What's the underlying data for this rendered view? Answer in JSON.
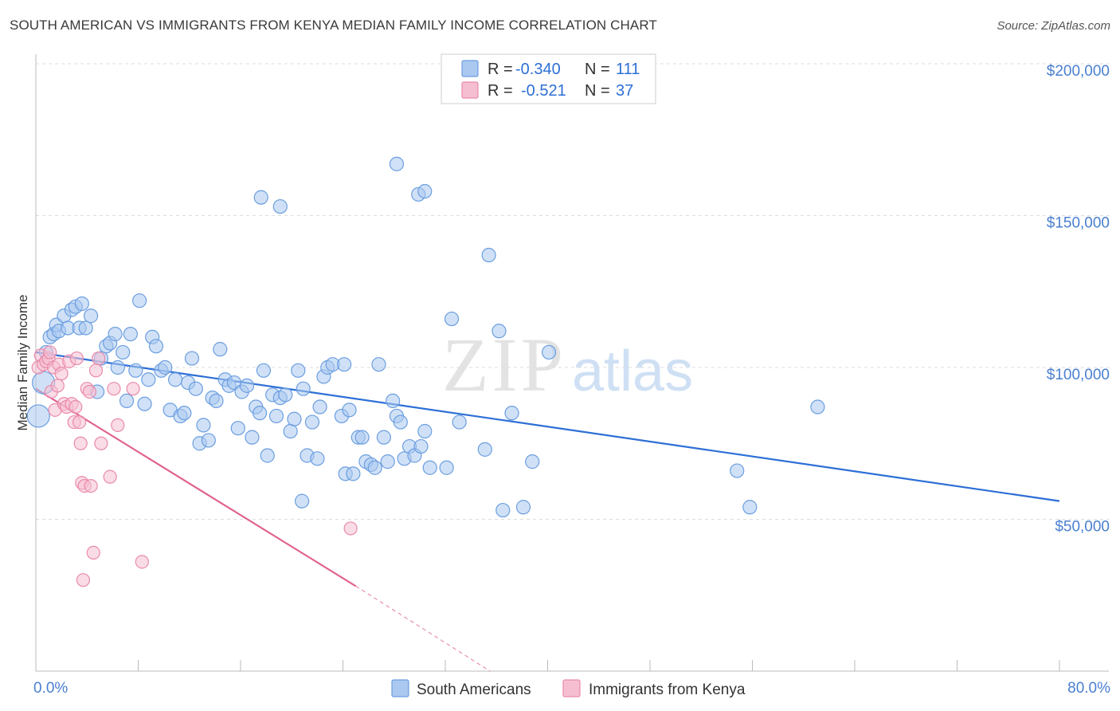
{
  "header": {
    "title": "SOUTH AMERICAN VS IMMIGRANTS FROM KENYA MEDIAN FAMILY INCOME CORRELATION CHART",
    "source": "Source: ZipAtlas.com"
  },
  "watermark": {
    "zip": "ZIP",
    "atlas": "atlas"
  },
  "colors": {
    "blue": "#6b9ee0",
    "blue_fill": "#aac8f0",
    "blue_line": "#2d6fd6",
    "pink": "#e98aab",
    "pink_fill": "#f6bfd1",
    "pink_line": "#e0628f",
    "tick_text": "#4a7fd0"
  },
  "legend": {
    "r_label": "R =",
    "n_label": "N =",
    "rows": [
      {
        "r": "-0.340",
        "n": "111"
      },
      {
        "r": "-0.521",
        "n": "37"
      }
    ]
  },
  "chart_data": {
    "type": "scatter",
    "title": "SOUTH AMERICAN VS IMMIGRANTS FROM KENYA MEDIAN FAMILY INCOME CORRELATION CHART",
    "xlabel": "",
    "ylabel": "Median Family Income",
    "xlim": [
      0,
      80
    ],
    "ylim": [
      0,
      200000
    ],
    "x_tick_labels": [
      "0.0%",
      "80.0%"
    ],
    "y_ticks": [
      50000,
      100000,
      150000,
      200000
    ],
    "y_tick_labels": [
      "$50,000",
      "$100,000",
      "$150,000",
      "$200,000"
    ],
    "grid": true,
    "legend_position": "top-center",
    "series": [
      {
        "name": "South Americans",
        "trend": {
          "x": [
            0,
            80
          ],
          "y": [
            105000,
            56000
          ],
          "extrapolated_to": null
        },
        "points": [
          [
            0.2,
            84000
          ],
          [
            0.6,
            95000
          ],
          [
            0.8,
            105000
          ],
          [
            1.1,
            110000
          ],
          [
            1.4,
            111000
          ],
          [
            1.6,
            114000
          ],
          [
            1.8,
            112000
          ],
          [
            2.2,
            117000
          ],
          [
            2.5,
            113000
          ],
          [
            2.8,
            119000
          ],
          [
            3.1,
            120000
          ],
          [
            3.4,
            113000
          ],
          [
            3.6,
            121000
          ],
          [
            3.9,
            113000
          ],
          [
            4.3,
            117000
          ],
          [
            4.8,
            92000
          ],
          [
            5.1,
            103000
          ],
          [
            5.5,
            107000
          ],
          [
            5.8,
            108000
          ],
          [
            6.2,
            111000
          ],
          [
            6.4,
            100000
          ],
          [
            6.8,
            105000
          ],
          [
            7.1,
            89000
          ],
          [
            7.4,
            111000
          ],
          [
            7.8,
            99000
          ],
          [
            8.1,
            122000
          ],
          [
            8.5,
            88000
          ],
          [
            8.8,
            96000
          ],
          [
            9.1,
            110000
          ],
          [
            9.4,
            107000
          ],
          [
            9.8,
            99000
          ],
          [
            10.1,
            100000
          ],
          [
            10.5,
            86000
          ],
          [
            10.9,
            96000
          ],
          [
            11.3,
            84000
          ],
          [
            11.6,
            85000
          ],
          [
            11.9,
            95000
          ],
          [
            12.2,
            103000
          ],
          [
            12.5,
            93000
          ],
          [
            12.8,
            75000
          ],
          [
            13.1,
            81000
          ],
          [
            13.5,
            76000
          ],
          [
            13.8,
            90000
          ],
          [
            14.1,
            89000
          ],
          [
            14.4,
            106000
          ],
          [
            14.8,
            96000
          ],
          [
            15.1,
            94000
          ],
          [
            15.5,
            95000
          ],
          [
            15.8,
            80000
          ],
          [
            16.1,
            92000
          ],
          [
            16.5,
            94000
          ],
          [
            16.9,
            77000
          ],
          [
            17.2,
            87000
          ],
          [
            17.5,
            85000
          ],
          [
            17.8,
            99000
          ],
          [
            18.1,
            71000
          ],
          [
            18.5,
            91000
          ],
          [
            18.8,
            84000
          ],
          [
            19.1,
            90000
          ],
          [
            19.5,
            91000
          ],
          [
            19.9,
            79000
          ],
          [
            20.2,
            83000
          ],
          [
            20.5,
            99000
          ],
          [
            20.9,
            93000
          ],
          [
            21.2,
            71000
          ],
          [
            21.6,
            82000
          ],
          [
            22.0,
            70000
          ],
          [
            22.2,
            87000
          ],
          [
            22.5,
            97000
          ],
          [
            22.8,
            100000
          ],
          [
            23.2,
            101000
          ],
          [
            23.9,
            84000
          ],
          [
            24.2,
            65000
          ],
          [
            24.5,
            86000
          ],
          [
            24.8,
            65000
          ],
          [
            25.2,
            77000
          ],
          [
            25.5,
            77000
          ],
          [
            25.8,
            69000
          ],
          [
            26.2,
            68000
          ],
          [
            26.5,
            67000
          ],
          [
            26.8,
            101000
          ],
          [
            27.2,
            77000
          ],
          [
            27.5,
            69000
          ],
          [
            27.9,
            89000
          ],
          [
            28.2,
            84000
          ],
          [
            28.5,
            82000
          ],
          [
            28.8,
            70000
          ],
          [
            29.2,
            74000
          ],
          [
            29.6,
            71000
          ],
          [
            30.1,
            74000
          ],
          [
            30.4,
            79000
          ],
          [
            30.8,
            67000
          ],
          [
            28.2,
            167000
          ],
          [
            32.1,
            67000
          ],
          [
            32.5,
            116000
          ],
          [
            33.1,
            82000
          ],
          [
            29.9,
            157000
          ],
          [
            30.4,
            158000
          ],
          [
            35.1,
            73000
          ],
          [
            35.4,
            137000
          ],
          [
            36.2,
            112000
          ],
          [
            36.5,
            53000
          ],
          [
            37.2,
            85000
          ],
          [
            38.1,
            54000
          ],
          [
            38.8,
            69000
          ],
          [
            40.1,
            105000
          ],
          [
            17.6,
            156000
          ],
          [
            19.1,
            153000
          ],
          [
            24.1,
            101000
          ],
          [
            54.8,
            66000
          ],
          [
            61.1,
            87000
          ],
          [
            55.8,
            54000
          ],
          [
            20.8,
            56000
          ]
        ]
      },
      {
        "name": "Immigrants from Kenya",
        "trend": {
          "x": [
            0,
            25
          ],
          "y": [
            93000,
            28000
          ],
          "extrapolated_to": [
            35.5,
            0
          ]
        },
        "points": [
          [
            0.2,
            100000
          ],
          [
            0.4,
            104000
          ],
          [
            0.6,
            101000
          ],
          [
            0.8,
            102000
          ],
          [
            1.0,
            103000
          ],
          [
            1.2,
            92000
          ],
          [
            1.4,
            100000
          ],
          [
            1.5,
            86000
          ],
          [
            1.7,
            94000
          ],
          [
            1.8,
            101000
          ],
          [
            2.0,
            98000
          ],
          [
            2.2,
            88000
          ],
          [
            2.4,
            87000
          ],
          [
            2.6,
            102000
          ],
          [
            2.8,
            88000
          ],
          [
            3.0,
            82000
          ],
          [
            3.1,
            87000
          ],
          [
            3.2,
            103000
          ],
          [
            3.4,
            82000
          ],
          [
            3.5,
            75000
          ],
          [
            3.6,
            62000
          ],
          [
            3.8,
            61000
          ],
          [
            4.0,
            93000
          ],
          [
            4.2,
            92000
          ],
          [
            4.3,
            61000
          ],
          [
            4.5,
            39000
          ],
          [
            4.7,
            99000
          ],
          [
            4.9,
            103000
          ],
          [
            3.7,
            30000
          ],
          [
            5.1,
            75000
          ],
          [
            5.8,
            64000
          ],
          [
            6.1,
            93000
          ],
          [
            6.4,
            81000
          ],
          [
            7.6,
            93000
          ],
          [
            8.3,
            36000
          ],
          [
            24.6,
            47000
          ],
          [
            1.1,
            105000
          ]
        ]
      }
    ]
  }
}
